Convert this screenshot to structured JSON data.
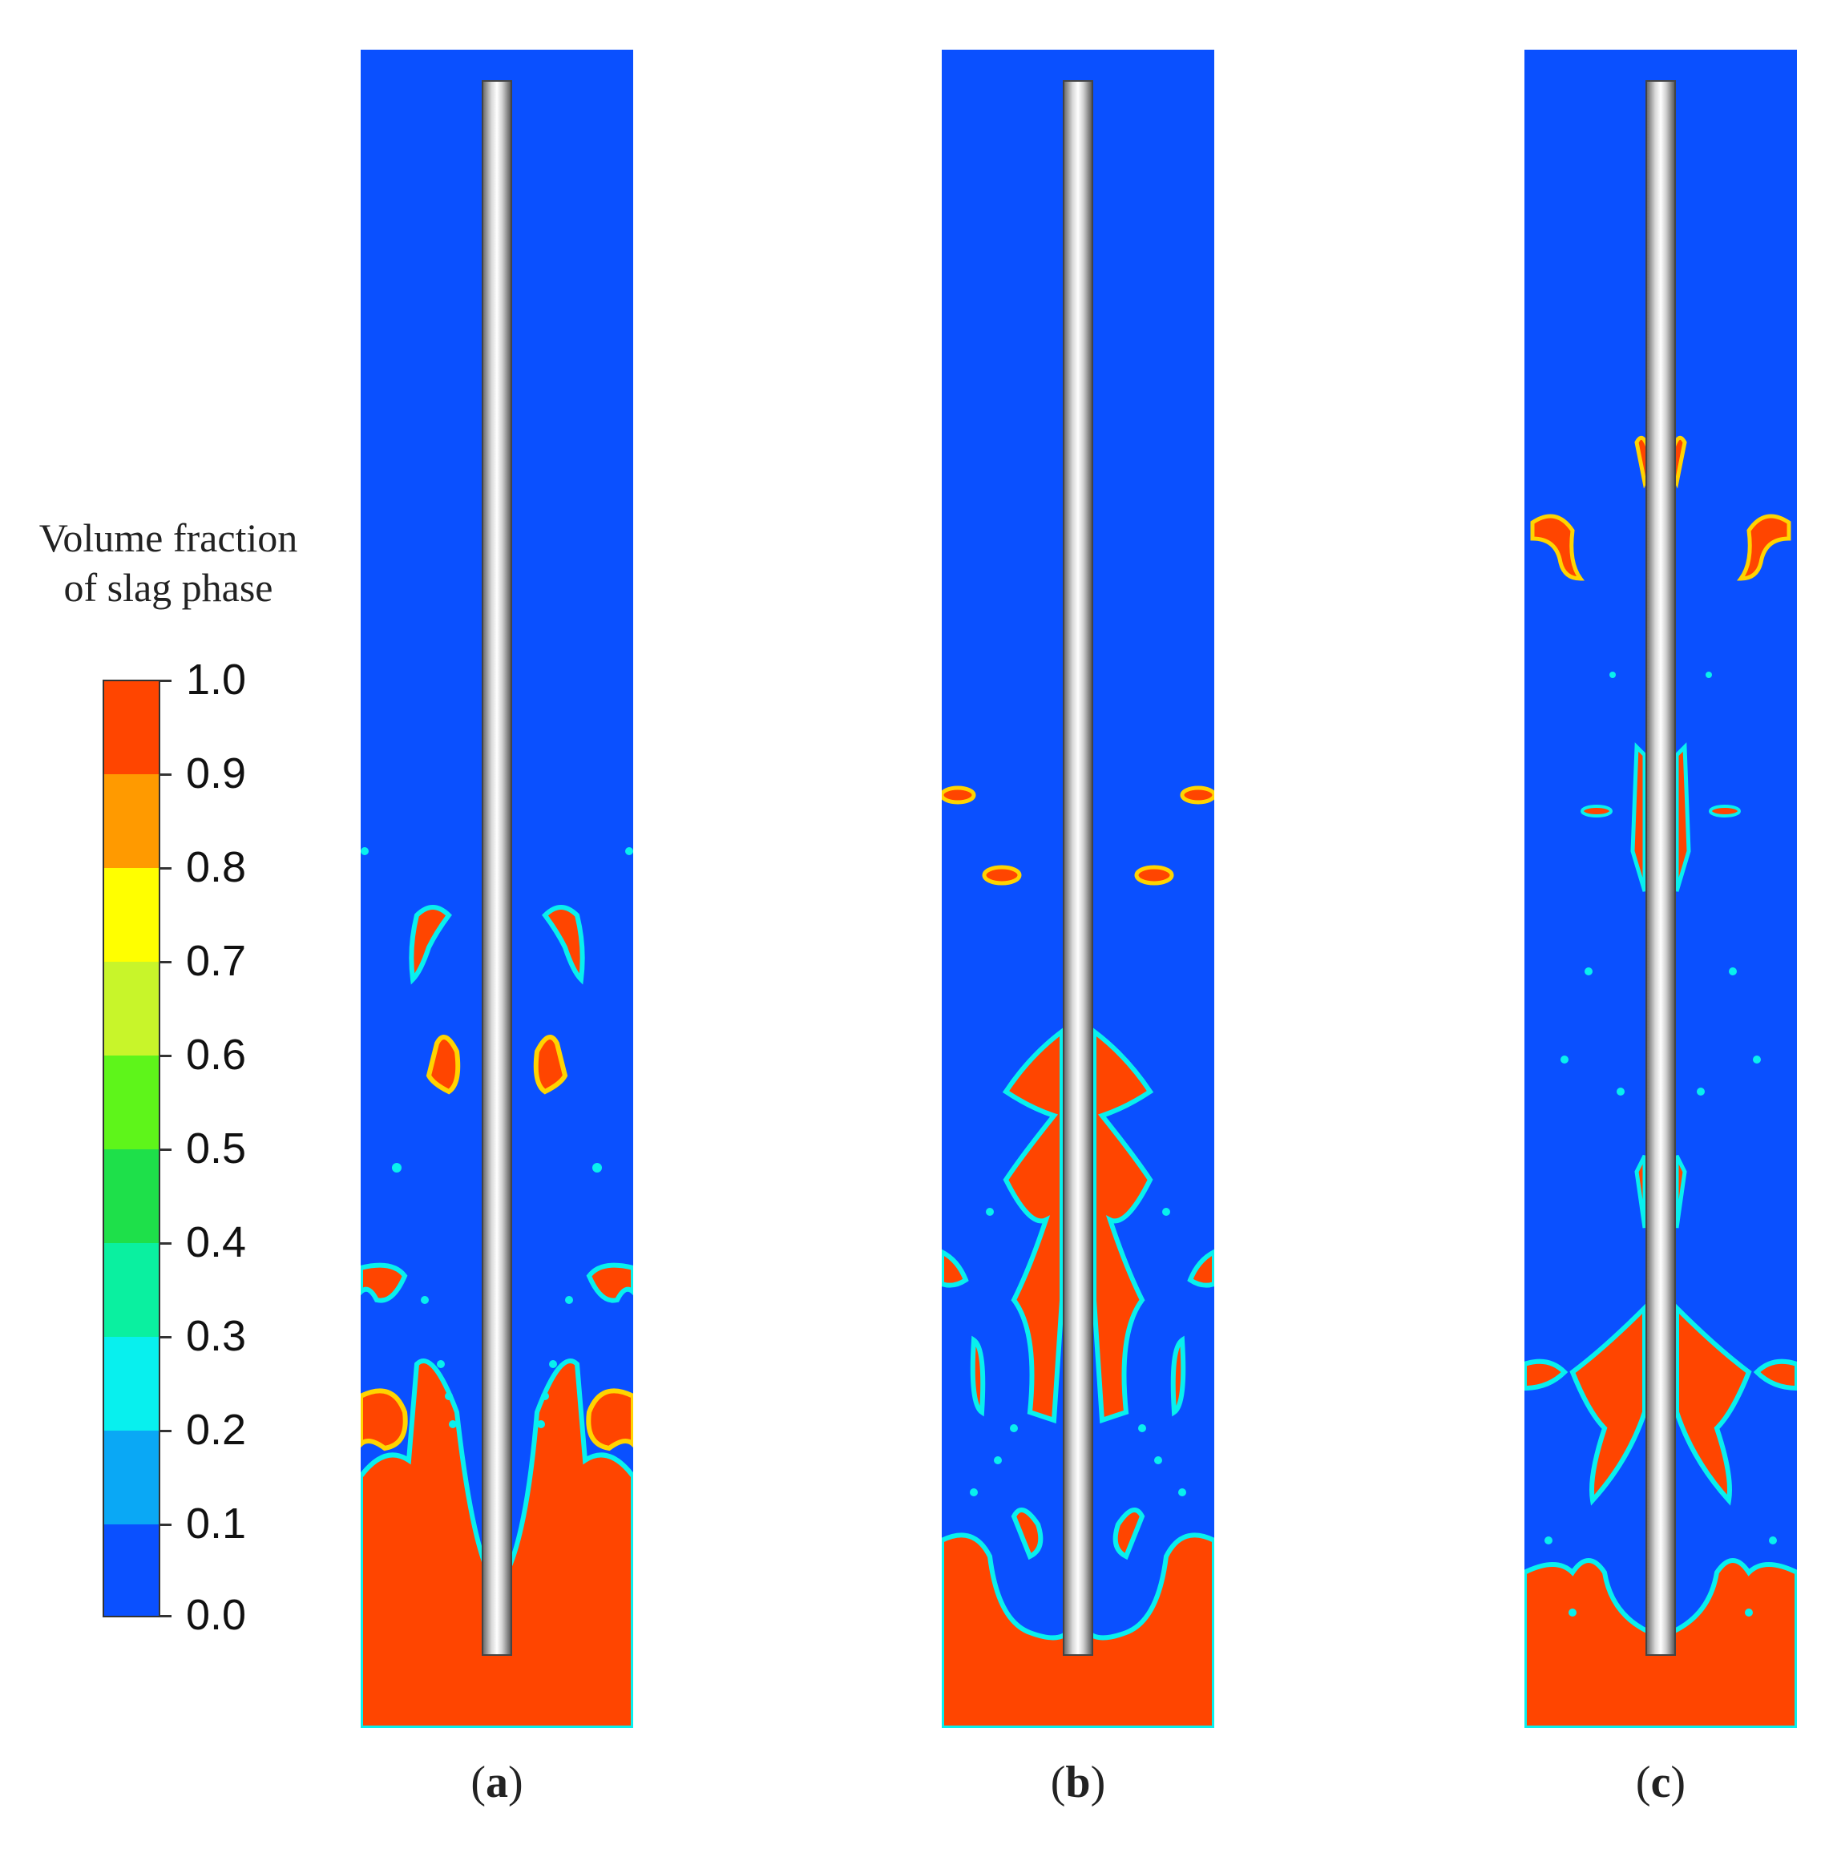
{
  "legend": {
    "title_line1": "Volume fraction",
    "title_line2": "of slag phase",
    "ticks": [
      "1.0",
      "0.9",
      "0.8",
      "0.7",
      "0.6",
      "0.5",
      "0.4",
      "0.3",
      "0.2",
      "0.1",
      "0.0"
    ],
    "colors": [
      "#ff4500",
      "#ff9a00",
      "#ffd400",
      "#ffff00",
      "#c8f52a",
      "#5ef51a",
      "#1ee04a",
      "#0af0a0",
      "#08f0ee",
      "#0aa8f5",
      "#0a50ff"
    ]
  },
  "panels": [
    {
      "id": "a",
      "caption": "a"
    },
    {
      "id": "b",
      "caption": "b"
    },
    {
      "id": "c",
      "caption": "c"
    }
  ],
  "colors": {
    "liquid_steel": "#0a50ff",
    "slag": "#ff4500",
    "rod": "#cccccc"
  }
}
